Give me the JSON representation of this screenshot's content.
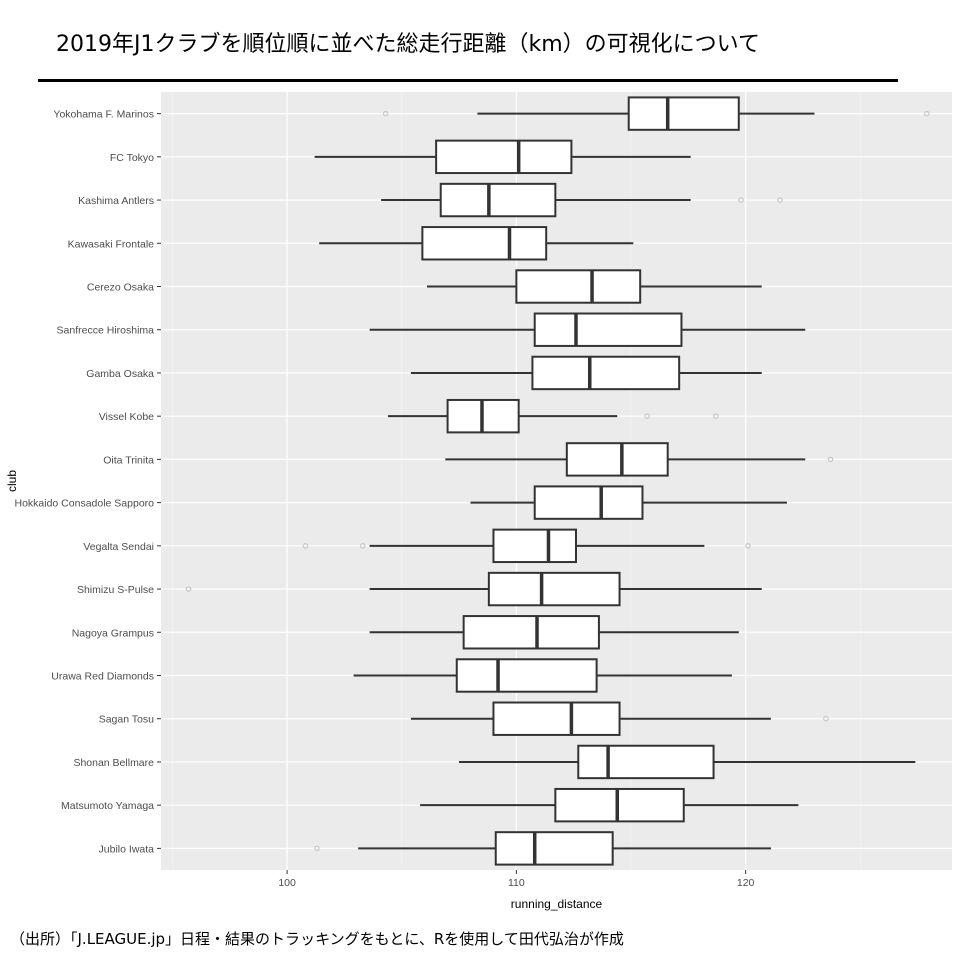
{
  "header": {
    "title": "2019年J1クラブを順位順に並べた総走行距離（km）の可視化について"
  },
  "footer": {
    "source": "（出所）「J.LEAGUE.jp」日程・結果のトラッキングをもとに、Rを使用して田代弘治が作成"
  },
  "chart_data": {
    "type": "boxplot",
    "orientation": "horizontal",
    "xlabel": "running_distance",
    "ylabel": "club",
    "xlim": [
      94.5,
      129
    ],
    "xticks": [
      100,
      110,
      120
    ],
    "grid": true,
    "colors": {
      "panel": "#ebebeb",
      "grid_major": "#ffffff",
      "grid_minor": "#f5f5f5",
      "box": "#333333",
      "outlier": "#c8c8c8"
    },
    "categories": [
      "Yokohama F. Marinos",
      "FC Tokyo",
      "Kashima Antlers",
      "Kawasaki Frontale",
      "Cerezo Osaka",
      "Sanfrecce Hiroshima",
      "Gamba Osaka",
      "Vissel Kobe",
      "Oita Trinita",
      "Hokkaido Consadole Sapporo",
      "Vegalta Sendai",
      "Shimizu S-Pulse",
      "Nagoya Grampus",
      "Urawa Red Diamonds",
      "Sagan Tosu",
      "Shonan Bellmare",
      "Matsumoto Yamaga",
      "Jubilo Iwata"
    ],
    "boxes": [
      {
        "club": "Yokohama F. Marinos",
        "whisker_low": 108.3,
        "q1": 114.9,
        "median": 116.6,
        "q3": 119.7,
        "whisker_high": 123.0,
        "outliers": [
          104.3,
          127.9
        ]
      },
      {
        "club": "FC Tokyo",
        "whisker_low": 101.2,
        "q1": 106.5,
        "median": 110.1,
        "q3": 112.4,
        "whisker_high": 117.6,
        "outliers": []
      },
      {
        "club": "Kashima Antlers",
        "whisker_low": 104.1,
        "q1": 106.7,
        "median": 108.8,
        "q3": 111.7,
        "whisker_high": 117.6,
        "outliers": [
          119.8,
          121.5
        ]
      },
      {
        "club": "Kawasaki Frontale",
        "whisker_low": 101.4,
        "q1": 105.9,
        "median": 109.7,
        "q3": 111.3,
        "whisker_high": 115.1,
        "outliers": []
      },
      {
        "club": "Cerezo Osaka",
        "whisker_low": 106.1,
        "q1": 110.0,
        "median": 113.3,
        "q3": 115.4,
        "whisker_high": 120.7,
        "outliers": []
      },
      {
        "club": "Sanfrecce Hiroshima",
        "whisker_low": 103.6,
        "q1": 110.8,
        "median": 112.6,
        "q3": 117.2,
        "whisker_high": 122.6,
        "outliers": []
      },
      {
        "club": "Gamba Osaka",
        "whisker_low": 105.4,
        "q1": 110.7,
        "median": 113.2,
        "q3": 117.1,
        "whisker_high": 120.7,
        "outliers": []
      },
      {
        "club": "Vissel Kobe",
        "whisker_low": 104.4,
        "q1": 107.0,
        "median": 108.5,
        "q3": 110.1,
        "whisker_high": 114.4,
        "outliers": [
          115.7,
          118.7
        ]
      },
      {
        "club": "Oita Trinita",
        "whisker_low": 106.9,
        "q1": 112.2,
        "median": 114.6,
        "q3": 116.6,
        "whisker_high": 122.6,
        "outliers": [
          123.7
        ]
      },
      {
        "club": "Hokkaido Consadole Sapporo",
        "whisker_low": 108.0,
        "q1": 110.8,
        "median": 113.7,
        "q3": 115.5,
        "whisker_high": 121.8,
        "outliers": []
      },
      {
        "club": "Vegalta Sendai",
        "whisker_low": 103.6,
        "q1": 109.0,
        "median": 111.4,
        "q3": 112.6,
        "whisker_high": 118.2,
        "outliers": [
          100.8,
          103.3,
          120.1
        ]
      },
      {
        "club": "Shimizu S-Pulse",
        "whisker_low": 103.6,
        "q1": 108.8,
        "median": 111.1,
        "q3": 114.5,
        "whisker_high": 120.7,
        "outliers": [
          95.7
        ]
      },
      {
        "club": "Nagoya Grampus",
        "whisker_low": 103.6,
        "q1": 107.7,
        "median": 110.9,
        "q3": 113.6,
        "whisker_high": 119.7,
        "outliers": []
      },
      {
        "club": "Urawa Red Diamonds",
        "whisker_low": 102.9,
        "q1": 107.4,
        "median": 109.2,
        "q3": 113.5,
        "whisker_high": 119.4,
        "outliers": []
      },
      {
        "club": "Sagan Tosu",
        "whisker_low": 105.4,
        "q1": 109.0,
        "median": 112.4,
        "q3": 114.5,
        "whisker_high": 121.1,
        "outliers": [
          123.5
        ]
      },
      {
        "club": "Shonan Bellmare",
        "whisker_low": 107.5,
        "q1": 112.7,
        "median": 114.0,
        "q3": 118.6,
        "whisker_high": 127.4,
        "outliers": []
      },
      {
        "club": "Matsumoto Yamaga",
        "whisker_low": 105.8,
        "q1": 111.7,
        "median": 114.4,
        "q3": 117.3,
        "whisker_high": 122.3,
        "outliers": []
      },
      {
        "club": "Jubilo Iwata",
        "whisker_low": 103.1,
        "q1": 109.1,
        "median": 110.8,
        "q3": 114.2,
        "whisker_high": 121.1,
        "outliers": [
          101.3
        ]
      }
    ]
  }
}
